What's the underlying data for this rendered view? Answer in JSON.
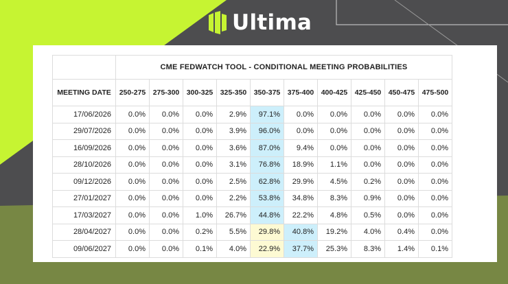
{
  "brand": {
    "name": "Ultima"
  },
  "table": {
    "title": "CME FEDWATCH TOOL - CONDITIONAL MEETING PROBABILITIES",
    "date_header": "MEETING DATE",
    "columns": [
      "250-275",
      "275-300",
      "300-325",
      "325-350",
      "350-375",
      "375-400",
      "400-425",
      "425-450",
      "450-475",
      "475-500"
    ],
    "rows": [
      {
        "date": "17/06/2026",
        "values": [
          "0.0%",
          "0.0%",
          "0.0%",
          "2.9%",
          "97.1%",
          "0.0%",
          "0.0%",
          "0.0%",
          "0.0%",
          "0.0%"
        ]
      },
      {
        "date": "29/07/2026",
        "values": [
          "0.0%",
          "0.0%",
          "0.0%",
          "3.9%",
          "96.0%",
          "0.0%",
          "0.0%",
          "0.0%",
          "0.0%",
          "0.0%"
        ]
      },
      {
        "date": "16/09/2026",
        "values": [
          "0.0%",
          "0.0%",
          "0.0%",
          "3.6%",
          "87.0%",
          "9.4%",
          "0.0%",
          "0.0%",
          "0.0%",
          "0.0%"
        ]
      },
      {
        "date": "28/10/2026",
        "values": [
          "0.0%",
          "0.0%",
          "0.0%",
          "3.1%",
          "76.8%",
          "18.9%",
          "1.1%",
          "0.0%",
          "0.0%",
          "0.0%"
        ]
      },
      {
        "date": "09/12/2026",
        "values": [
          "0.0%",
          "0.0%",
          "0.0%",
          "2.5%",
          "62.8%",
          "29.9%",
          "4.5%",
          "0.2%",
          "0.0%",
          "0.0%"
        ]
      },
      {
        "date": "27/01/2027",
        "values": [
          "0.0%",
          "0.0%",
          "0.0%",
          "2.2%",
          "53.8%",
          "34.8%",
          "8.3%",
          "0.9%",
          "0.0%",
          "0.0%"
        ]
      },
      {
        "date": "17/03/2027",
        "values": [
          "0.0%",
          "0.0%",
          "1.0%",
          "26.7%",
          "44.8%",
          "22.2%",
          "4.8%",
          "0.5%",
          "0.0%",
          "0.0%"
        ]
      },
      {
        "date": "28/04/2027",
        "values": [
          "0.0%",
          "0.0%",
          "0.2%",
          "5.5%",
          "29.8%",
          "40.8%",
          "19.2%",
          "4.0%",
          "0.4%",
          "0.0%"
        ]
      },
      {
        "date": "09/06/2027",
        "values": [
          "0.0%",
          "0.0%",
          "0.1%",
          "4.0%",
          "22.9%",
          "37.7%",
          "25.3%",
          "8.3%",
          "1.4%",
          "0.1%"
        ]
      }
    ],
    "highlights": [
      {
        "row": 0,
        "col": 4,
        "color": "blue"
      },
      {
        "row": 1,
        "col": 4,
        "color": "blue"
      },
      {
        "row": 2,
        "col": 4,
        "color": "blue"
      },
      {
        "row": 3,
        "col": 4,
        "color": "blue"
      },
      {
        "row": 4,
        "col": 4,
        "color": "blue"
      },
      {
        "row": 5,
        "col": 4,
        "color": "blue"
      },
      {
        "row": 6,
        "col": 4,
        "color": "blue"
      },
      {
        "row": 7,
        "col": 4,
        "color": "yellow"
      },
      {
        "row": 7,
        "col": 5,
        "color": "blue"
      },
      {
        "row": 8,
        "col": 4,
        "color": "yellow"
      },
      {
        "row": 8,
        "col": 5,
        "color": "blue"
      }
    ]
  },
  "colors": {
    "background": "#4d4d4f",
    "accent": "#c6f432",
    "highlight_blue": "#cdeffb",
    "highlight_yellow": "#fdfad3"
  }
}
